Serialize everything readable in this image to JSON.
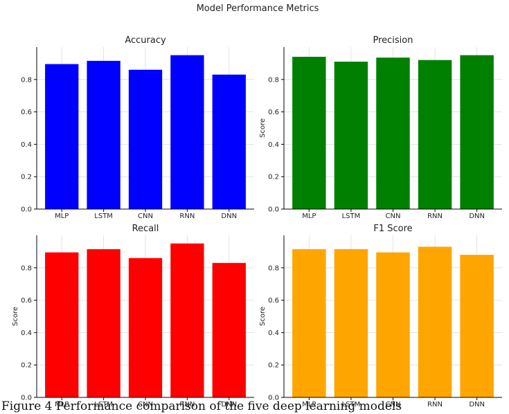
{
  "figure": {
    "suptitle": "Model Performance Metrics",
    "caption": "Figure 4 Performance comparison of the five deep learning models"
  },
  "chart_data": [
    {
      "type": "bar",
      "title": "Accuracy",
      "ylabel": "",
      "categories": [
        "MLP",
        "LSTM",
        "CNN",
        "RNN",
        "DNN"
      ],
      "values": [
        0.895,
        0.915,
        0.86,
        0.95,
        0.83
      ],
      "ylim": [
        0,
        1.0
      ],
      "yticks": [
        "0.0",
        "0.2",
        "0.4",
        "0.6",
        "0.8"
      ],
      "grid": true,
      "color": "#0000ff"
    },
    {
      "type": "bar",
      "title": "Precision",
      "ylabel": "Score",
      "categories": [
        "MLP",
        "LSTM",
        "CNN",
        "RNN",
        "DNN"
      ],
      "values": [
        0.94,
        0.91,
        0.935,
        0.92,
        0.95
      ],
      "ylim": [
        0,
        1.0
      ],
      "yticks": [
        "0.0",
        "0.2",
        "0.4",
        "0.6",
        "0.8"
      ],
      "grid": true,
      "color": "#008000"
    },
    {
      "type": "bar",
      "title": "Recall",
      "ylabel": "Score",
      "categories": [
        "MLP",
        "LSTM",
        "CNN",
        "RNN",
        "DNN"
      ],
      "values": [
        0.895,
        0.915,
        0.86,
        0.95,
        0.83
      ],
      "ylim": [
        0,
        1.0
      ],
      "yticks": [
        "0.0",
        "0.2",
        "0.4",
        "0.6",
        "0.8"
      ],
      "grid": true,
      "color": "#ff0000"
    },
    {
      "type": "bar",
      "title": "F1 Score",
      "ylabel": "Score",
      "categories": [
        "MLP",
        "LSTM",
        "CNN",
        "RNN",
        "DNN"
      ],
      "values": [
        0.915,
        0.915,
        0.895,
        0.93,
        0.88
      ],
      "ylim": [
        0,
        1.0
      ],
      "yticks": [
        "0.0",
        "0.2",
        "0.4",
        "0.6",
        "0.8"
      ],
      "grid": true,
      "color": "#ffa500"
    }
  ]
}
